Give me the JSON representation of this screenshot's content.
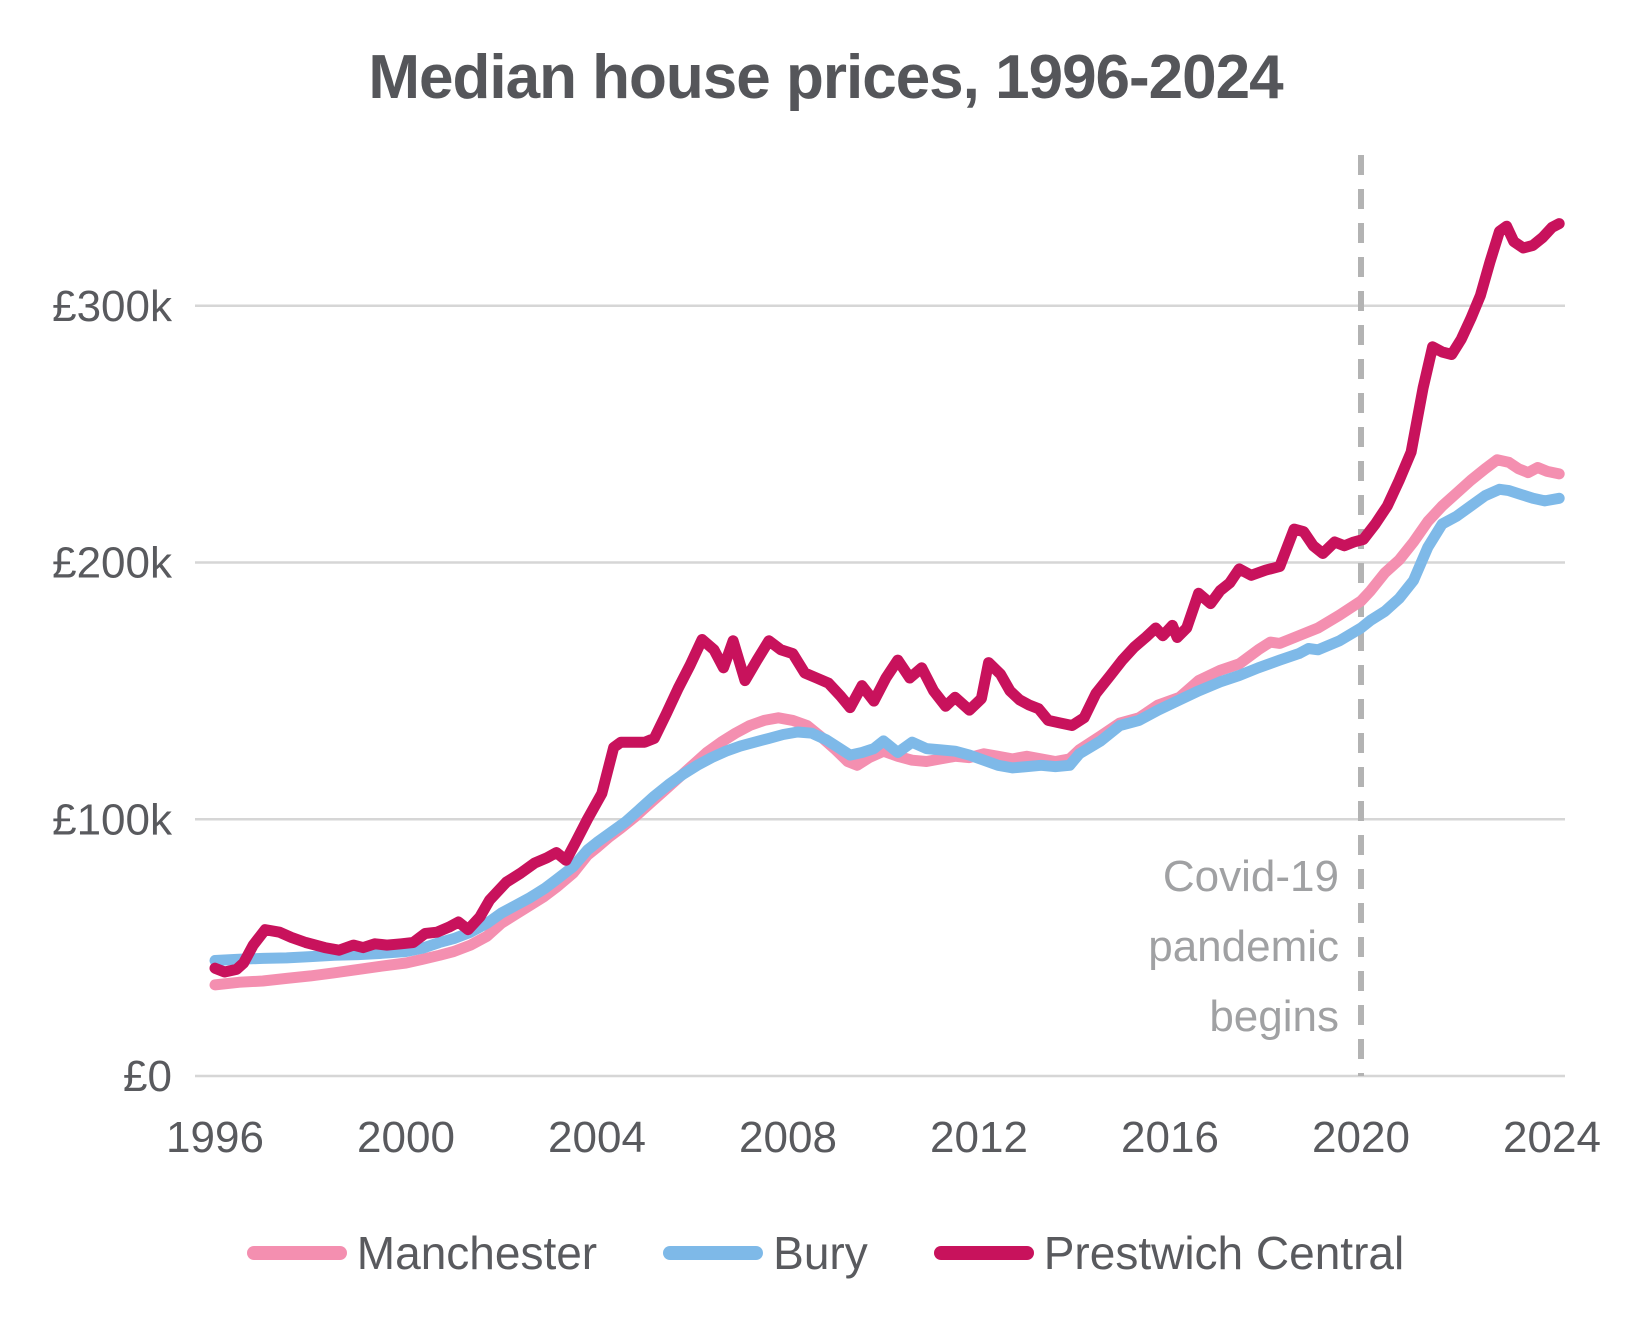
{
  "title": "Median house prices, 1996-2024",
  "annotation": {
    "lines": [
      "Covid-19",
      "pandemic",
      "begins"
    ],
    "attached_to_year": 2020
  },
  "colors": {
    "title_text": "#55565a",
    "axis_text": "#595a5e",
    "gridline": "#d6d6d6",
    "event_line": "#b3b3b3",
    "annotation_text": "#a0a1a3",
    "manchester": "#f48fb0",
    "bury": "#7eb9e8",
    "prestwich": "#c8125c"
  },
  "chart_data": {
    "type": "line",
    "title": "Median house prices, 1996-2024",
    "unit": "GBP thousands",
    "grid": "horizontal",
    "legend_position": "bottom",
    "x_axis": {
      "label": "",
      "tick_values": [
        1996,
        2000,
        2004,
        2008,
        2012,
        2016,
        2020,
        2024
      ],
      "range": [
        1995.7,
        2024.5
      ]
    },
    "y_axis": {
      "label": "",
      "tick_values": [
        0,
        100,
        200,
        300
      ],
      "tick_labels": [
        "£0",
        "£100k",
        "£200k",
        "£300k"
      ],
      "range": [
        0,
        358
      ]
    },
    "event_line": {
      "x": 2020,
      "style": "dashed",
      "label": "Covid-19 pandemic begins"
    },
    "series": [
      {
        "name": "Manchester",
        "color": "#f48fb0",
        "points": [
          [
            1996.0,
            35.5
          ],
          [
            1996.5,
            36.5
          ],
          [
            1997.0,
            37
          ],
          [
            1997.5,
            38
          ],
          [
            1998.0,
            39
          ],
          [
            1998.5,
            40.2
          ],
          [
            1999.0,
            41.5
          ],
          [
            1999.5,
            42.8
          ],
          [
            2000.0,
            44
          ],
          [
            2000.35,
            45.5
          ],
          [
            2000.7,
            47
          ],
          [
            2001.0,
            48.5
          ],
          [
            2001.35,
            51
          ],
          [
            2001.7,
            54.5
          ],
          [
            2002.0,
            59.5
          ],
          [
            2002.3,
            63
          ],
          [
            2002.6,
            66.5
          ],
          [
            2002.9,
            70
          ],
          [
            2003.15,
            73.5
          ],
          [
            2003.5,
            79
          ],
          [
            2003.8,
            86
          ],
          [
            2004.0,
            89
          ],
          [
            2004.25,
            93
          ],
          [
            2004.5,
            96.5
          ],
          [
            2004.8,
            101
          ],
          [
            2005.1,
            106
          ],
          [
            2005.4,
            111
          ],
          [
            2005.7,
            116
          ],
          [
            2006.0,
            121
          ],
          [
            2006.3,
            126
          ],
          [
            2006.6,
            130
          ],
          [
            2006.9,
            133.5
          ],
          [
            2007.2,
            136.5
          ],
          [
            2007.5,
            138.5
          ],
          [
            2007.8,
            139.5
          ],
          [
            2008.1,
            138.5
          ],
          [
            2008.4,
            136.5
          ],
          [
            2008.7,
            132
          ],
          [
            2009.0,
            127
          ],
          [
            2009.25,
            122.5
          ],
          [
            2009.45,
            121
          ],
          [
            2009.7,
            124
          ],
          [
            2010.0,
            126.5
          ],
          [
            2010.3,
            124.5
          ],
          [
            2010.6,
            123
          ],
          [
            2010.9,
            122.5
          ],
          [
            2011.2,
            123.5
          ],
          [
            2011.5,
            124.5
          ],
          [
            2011.8,
            124
          ],
          [
            2012.1,
            125.5
          ],
          [
            2012.4,
            124.5
          ],
          [
            2012.7,
            123.5
          ],
          [
            2013.0,
            124.5
          ],
          [
            2013.3,
            123.5
          ],
          [
            2013.6,
            122.5
          ],
          [
            2013.9,
            123.5
          ],
          [
            2014.1,
            127
          ],
          [
            2014.55,
            132.5
          ],
          [
            2014.95,
            137.5
          ],
          [
            2015.35,
            139.5
          ],
          [
            2015.75,
            144.5
          ],
          [
            2016.2,
            147.5
          ],
          [
            2016.6,
            154
          ],
          [
            2017.05,
            158
          ],
          [
            2017.45,
            160.5
          ],
          [
            2017.85,
            166
          ],
          [
            2018.1,
            169
          ],
          [
            2018.3,
            168.5
          ],
          [
            2018.7,
            171.5
          ],
          [
            2019.1,
            174.5
          ],
          [
            2019.55,
            179.5
          ],
          [
            2020.0,
            185
          ],
          [
            2020.2,
            189
          ],
          [
            2020.5,
            196
          ],
          [
            2020.8,
            201
          ],
          [
            2021.1,
            208
          ],
          [
            2021.4,
            216
          ],
          [
            2021.7,
            222
          ],
          [
            2022.0,
            227
          ],
          [
            2022.3,
            232
          ],
          [
            2022.6,
            236.5
          ],
          [
            2022.85,
            240
          ],
          [
            2023.1,
            239
          ],
          [
            2023.3,
            236.5
          ],
          [
            2023.5,
            235
          ],
          [
            2023.7,
            237
          ],
          [
            2023.9,
            235.5
          ],
          [
            2024.15,
            234.5
          ]
        ]
      },
      {
        "name": "Bury",
        "color": "#7eb9e8",
        "points": [
          [
            1996.0,
            45
          ],
          [
            1996.5,
            45.5
          ],
          [
            1997.0,
            45.8
          ],
          [
            1997.5,
            46
          ],
          [
            1998.0,
            46.5
          ],
          [
            1998.5,
            47
          ],
          [
            1999.0,
            47.3
          ],
          [
            1999.5,
            47.8
          ],
          [
            2000.0,
            48.5
          ],
          [
            2000.35,
            49.8
          ],
          [
            2000.7,
            52
          ],
          [
            2001.0,
            53.5
          ],
          [
            2001.35,
            56
          ],
          [
            2001.7,
            59.5
          ],
          [
            2002.0,
            63.5
          ],
          [
            2002.3,
            66.5
          ],
          [
            2002.6,
            69.5
          ],
          [
            2002.9,
            73
          ],
          [
            2003.15,
            76.5
          ],
          [
            2003.5,
            81.5
          ],
          [
            2003.8,
            88
          ],
          [
            2004.0,
            91
          ],
          [
            2004.3,
            95
          ],
          [
            2004.6,
            99
          ],
          [
            2004.9,
            104
          ],
          [
            2005.2,
            109
          ],
          [
            2005.5,
            113.5
          ],
          [
            2005.8,
            117.5
          ],
          [
            2006.1,
            121
          ],
          [
            2006.4,
            124
          ],
          [
            2006.7,
            126.5
          ],
          [
            2007.0,
            128.5
          ],
          [
            2007.3,
            130
          ],
          [
            2007.6,
            131.5
          ],
          [
            2007.9,
            133
          ],
          [
            2008.2,
            134
          ],
          [
            2008.5,
            133.5
          ],
          [
            2008.8,
            131
          ],
          [
            2009.05,
            128
          ],
          [
            2009.3,
            125
          ],
          [
            2009.55,
            126
          ],
          [
            2009.8,
            127.5
          ],
          [
            2010.0,
            130.5
          ],
          [
            2010.3,
            126
          ],
          [
            2010.6,
            130
          ],
          [
            2010.9,
            127.5
          ],
          [
            2011.2,
            127
          ],
          [
            2011.5,
            126.5
          ],
          [
            2011.8,
            125
          ],
          [
            2012.1,
            123
          ],
          [
            2012.4,
            121
          ],
          [
            2012.7,
            120
          ],
          [
            2013.0,
            120.5
          ],
          [
            2013.3,
            121
          ],
          [
            2013.6,
            120.5
          ],
          [
            2013.9,
            121
          ],
          [
            2014.1,
            125.5
          ],
          [
            2014.55,
            130.5
          ],
          [
            2014.95,
            136.5
          ],
          [
            2015.35,
            138.5
          ],
          [
            2015.75,
            142.5
          ],
          [
            2016.2,
            146.5
          ],
          [
            2016.6,
            150
          ],
          [
            2017.05,
            153.5
          ],
          [
            2017.45,
            156
          ],
          [
            2017.85,
            159
          ],
          [
            2018.3,
            162
          ],
          [
            2018.7,
            164.5
          ],
          [
            2018.9,
            166.5
          ],
          [
            2019.1,
            166
          ],
          [
            2019.55,
            169.5
          ],
          [
            2020.0,
            174.5
          ],
          [
            2020.2,
            177.5
          ],
          [
            2020.5,
            181
          ],
          [
            2020.8,
            186
          ],
          [
            2021.1,
            193
          ],
          [
            2021.4,
            206
          ],
          [
            2021.7,
            215
          ],
          [
            2022.0,
            218
          ],
          [
            2022.3,
            222
          ],
          [
            2022.6,
            226
          ],
          [
            2022.9,
            228.5
          ],
          [
            2023.1,
            228
          ],
          [
            2023.35,
            226.5
          ],
          [
            2023.6,
            225
          ],
          [
            2023.85,
            224
          ],
          [
            2024.15,
            225
          ]
        ]
      },
      {
        "name": "Prestwich Central",
        "color": "#c8125c",
        "points": [
          [
            1996.0,
            42
          ],
          [
            1996.2,
            40.5
          ],
          [
            1996.45,
            41.5
          ],
          [
            1996.6,
            44
          ],
          [
            1996.8,
            51
          ],
          [
            1997.05,
            57
          ],
          [
            1997.35,
            56
          ],
          [
            1997.6,
            54
          ],
          [
            1997.9,
            52
          ],
          [
            1998.3,
            50
          ],
          [
            1998.6,
            49
          ],
          [
            1998.9,
            51
          ],
          [
            1999.1,
            50
          ],
          [
            1999.35,
            51.5
          ],
          [
            1999.6,
            51
          ],
          [
            1999.9,
            51.5
          ],
          [
            2000.15,
            52
          ],
          [
            2000.4,
            55.5
          ],
          [
            2000.65,
            56
          ],
          [
            2000.9,
            58
          ],
          [
            2001.1,
            60
          ],
          [
            2001.3,
            57
          ],
          [
            2001.55,
            62
          ],
          [
            2001.75,
            68.5
          ],
          [
            2002.1,
            75.5
          ],
          [
            2002.4,
            79
          ],
          [
            2002.7,
            83
          ],
          [
            2002.95,
            85
          ],
          [
            2003.15,
            87
          ],
          [
            2003.35,
            84
          ],
          [
            2003.55,
            91
          ],
          [
            2003.8,
            100
          ],
          [
            2004.1,
            110
          ],
          [
            2004.35,
            128
          ],
          [
            2004.5,
            130
          ],
          [
            2004.75,
            130
          ],
          [
            2005.0,
            130
          ],
          [
            2005.2,
            131.5
          ],
          [
            2005.45,
            141
          ],
          [
            2005.7,
            151
          ],
          [
            2005.95,
            160
          ],
          [
            2006.2,
            170
          ],
          [
            2006.45,
            166
          ],
          [
            2006.65,
            159
          ],
          [
            2006.85,
            169.5
          ],
          [
            2007.1,
            154
          ],
          [
            2007.35,
            162
          ],
          [
            2007.6,
            169.5
          ],
          [
            2007.85,
            166
          ],
          [
            2008.1,
            164.5
          ],
          [
            2008.35,
            157
          ],
          [
            2008.6,
            155
          ],
          [
            2008.85,
            153
          ],
          [
            2009.1,
            148
          ],
          [
            2009.3,
            143.5
          ],
          [
            2009.55,
            152
          ],
          [
            2009.8,
            146
          ],
          [
            2010.05,
            155
          ],
          [
            2010.3,
            162
          ],
          [
            2010.55,
            155
          ],
          [
            2010.8,
            159
          ],
          [
            2011.05,
            150
          ],
          [
            2011.3,
            144
          ],
          [
            2011.5,
            147.5
          ],
          [
            2011.8,
            142.5
          ],
          [
            2012.05,
            147
          ],
          [
            2012.2,
            161
          ],
          [
            2012.45,
            156.5
          ],
          [
            2012.65,
            150
          ],
          [
            2012.85,
            146.5
          ],
          [
            2013.05,
            144.5
          ],
          [
            2013.25,
            143
          ],
          [
            2013.45,
            138.5
          ],
          [
            2013.7,
            137.5
          ],
          [
            2013.95,
            136.5
          ],
          [
            2014.2,
            139.5
          ],
          [
            2014.45,
            149
          ],
          [
            2014.75,
            156
          ],
          [
            2015.0,
            162
          ],
          [
            2015.25,
            167
          ],
          [
            2015.5,
            171
          ],
          [
            2015.7,
            174.5
          ],
          [
            2015.85,
            171.5
          ],
          [
            2016.05,
            175.5
          ],
          [
            2016.15,
            170.8
          ],
          [
            2016.35,
            174.5
          ],
          [
            2016.6,
            188
          ],
          [
            2016.85,
            184
          ],
          [
            2017.05,
            189
          ],
          [
            2017.25,
            192
          ],
          [
            2017.45,
            197.5
          ],
          [
            2017.7,
            195
          ],
          [
            2018.0,
            197
          ],
          [
            2018.3,
            198.5
          ],
          [
            2018.6,
            213
          ],
          [
            2018.8,
            212
          ],
          [
            2019.0,
            206.5
          ],
          [
            2019.2,
            203.5
          ],
          [
            2019.45,
            208
          ],
          [
            2019.65,
            206.5
          ],
          [
            2019.85,
            208
          ],
          [
            2020.05,
            209
          ],
          [
            2020.3,
            215
          ],
          [
            2020.55,
            222
          ],
          [
            2020.8,
            232
          ],
          [
            2021.05,
            243
          ],
          [
            2021.3,
            268
          ],
          [
            2021.5,
            284
          ],
          [
            2021.7,
            282
          ],
          [
            2021.9,
            281
          ],
          [
            2022.1,
            287
          ],
          [
            2022.3,
            295
          ],
          [
            2022.5,
            304
          ],
          [
            2022.7,
            317
          ],
          [
            2022.9,
            329
          ],
          [
            2023.05,
            331
          ],
          [
            2023.2,
            325
          ],
          [
            2023.4,
            322.5
          ],
          [
            2023.6,
            323.5
          ],
          [
            2023.8,
            326.5
          ],
          [
            2024.0,
            330.5
          ],
          [
            2024.15,
            332
          ]
        ]
      }
    ]
  }
}
